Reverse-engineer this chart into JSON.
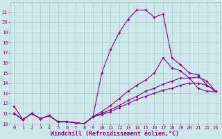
{
  "xlabel": "Windchill (Refroidissement éolien,°C)",
  "xlim": [
    -0.5,
    23.5
  ],
  "ylim": [
    10,
    22
  ],
  "yticks": [
    10,
    11,
    12,
    13,
    14,
    15,
    16,
    17,
    18,
    19,
    20,
    21
  ],
  "xticks": [
    0,
    1,
    2,
    3,
    4,
    5,
    6,
    7,
    8,
    9,
    10,
    11,
    12,
    13,
    14,
    15,
    16,
    17,
    18,
    19,
    20,
    21,
    22,
    23
  ],
  "bg_color": "#cce8e8",
  "grid_color": "#aabbcc",
  "line_color": "#880088",
  "line1_x": [
    0,
    1,
    2,
    3,
    4,
    5,
    6,
    7,
    8,
    9,
    10,
    11,
    12,
    13,
    14,
    15,
    16,
    17,
    18,
    19,
    20,
    21,
    22,
    23
  ],
  "line1_y": [
    11.7,
    10.4,
    11.0,
    10.5,
    10.8,
    10.2,
    10.2,
    10.1,
    10.0,
    10.7,
    15.0,
    17.3,
    19.0,
    20.3,
    21.2,
    21.2,
    20.5,
    20.8,
    16.5,
    15.8,
    15.0,
    14.8,
    13.8,
    13.2
  ],
  "line2_x": [
    0,
    1,
    2,
    3,
    4,
    5,
    6,
    7,
    8,
    9,
    10,
    11,
    12,
    13,
    14,
    15,
    16,
    17,
    18,
    19,
    20,
    21,
    22,
    23
  ],
  "line2_y": [
    11.0,
    10.4,
    11.0,
    10.5,
    10.8,
    10.2,
    10.2,
    10.1,
    10.0,
    10.7,
    11.2,
    11.8,
    12.5,
    13.2,
    13.8,
    14.3,
    15.0,
    16.5,
    15.5,
    15.2,
    14.5,
    13.5,
    13.2,
    13.2
  ],
  "line3_x": [
    0,
    1,
    2,
    3,
    4,
    5,
    6,
    7,
    8,
    9,
    10,
    11,
    12,
    13,
    14,
    15,
    16,
    17,
    18,
    19,
    20,
    21,
    22,
    23
  ],
  "line3_y": [
    11.0,
    10.4,
    11.0,
    10.5,
    10.8,
    10.2,
    10.2,
    10.1,
    10.0,
    10.7,
    11.0,
    11.4,
    11.8,
    12.3,
    12.7,
    13.2,
    13.5,
    13.9,
    14.2,
    14.5,
    14.5,
    14.6,
    14.2,
    13.2
  ],
  "line4_x": [
    0,
    1,
    2,
    3,
    4,
    5,
    6,
    7,
    8,
    9,
    10,
    11,
    12,
    13,
    14,
    15,
    16,
    17,
    18,
    19,
    20,
    21,
    22,
    23
  ],
  "line4_y": [
    11.0,
    10.4,
    11.0,
    10.5,
    10.8,
    10.2,
    10.2,
    10.1,
    10.0,
    10.7,
    10.9,
    11.2,
    11.6,
    12.0,
    12.4,
    12.7,
    13.0,
    13.3,
    13.5,
    13.8,
    14.0,
    14.0,
    13.8,
    13.2
  ],
  "marker_size": 2.0,
  "line_width": 0.8,
  "tick_fontsize": 5.0,
  "xlabel_fontsize": 6.0
}
